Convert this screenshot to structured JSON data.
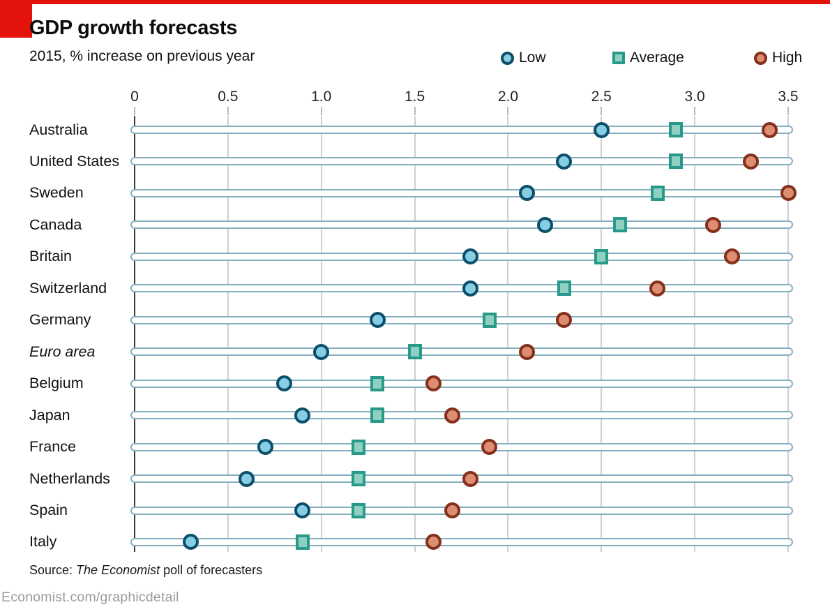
{
  "header": {
    "title": "GDP growth forecasts",
    "subtitle": "2015, % increase on previous year"
  },
  "legend": [
    {
      "label": "Low",
      "marker": "circle",
      "fill": "#87CEE4",
      "stroke": "#0B4F6B"
    },
    {
      "label": "Average",
      "marker": "square",
      "fill": "#8FD0C3",
      "stroke": "#279A8A"
    },
    {
      "label": "High",
      "marker": "circle",
      "fill": "#DD8E72",
      "stroke": "#84301C"
    }
  ],
  "chart_data": {
    "type": "scatter",
    "subtype": "dot-plot-horizontal",
    "title": "GDP growth forecasts",
    "subtitle": "2015, % increase on previous year",
    "xlabel": "",
    "ylabel": "",
    "x_range": [
      0,
      3.5
    ],
    "x_ticks": [
      "0",
      "0.5",
      "1.0",
      "1.5",
      "2.0",
      "2.5",
      "3.0",
      "3.5"
    ],
    "grid": "vertical",
    "legend_position": "top-right",
    "categories": [
      "Australia",
      "United States",
      "Sweden",
      "Canada",
      "Britain",
      "Switzerland",
      "Germany",
      "Euro area",
      "Belgium",
      "Japan",
      "France",
      "Netherlands",
      "Spain",
      "Italy"
    ],
    "italic_categories": [
      "Euro area"
    ],
    "series": [
      {
        "name": "Low",
        "marker": "circle",
        "fill": "#87CEE4",
        "stroke": "#0B4F6B",
        "values": [
          2.5,
          2.3,
          2.1,
          2.2,
          1.8,
          1.8,
          1.3,
          1.0,
          0.8,
          0.9,
          0.7,
          0.6,
          0.9,
          0.3
        ]
      },
      {
        "name": "Average",
        "marker": "square",
        "fill": "#8FD0C3",
        "stroke": "#279A8A",
        "values": [
          2.9,
          2.9,
          2.8,
          2.6,
          2.5,
          2.3,
          1.9,
          1.5,
          1.3,
          1.3,
          1.2,
          1.2,
          1.2,
          0.9
        ]
      },
      {
        "name": "High",
        "marker": "circle",
        "fill": "#DD8E72",
        "stroke": "#84301C",
        "values": [
          3.4,
          3.3,
          3.5,
          3.1,
          3.2,
          2.8,
          2.3,
          2.1,
          1.6,
          1.7,
          1.9,
          1.8,
          1.7,
          1.6
        ]
      }
    ]
  },
  "source": {
    "prefix": "Source: ",
    "italic": "The Economist",
    "suffix": " poll of forecasters"
  },
  "footer": {
    "url_text": "Economist.com/graphicdetail"
  },
  "colors": {
    "accent_red": "#E3120B",
    "gridline": "#cfcfcf",
    "zero_axis": "#3a3a3a",
    "track_border": "#85AEBF",
    "footer_gray": "#9b9b9b"
  }
}
